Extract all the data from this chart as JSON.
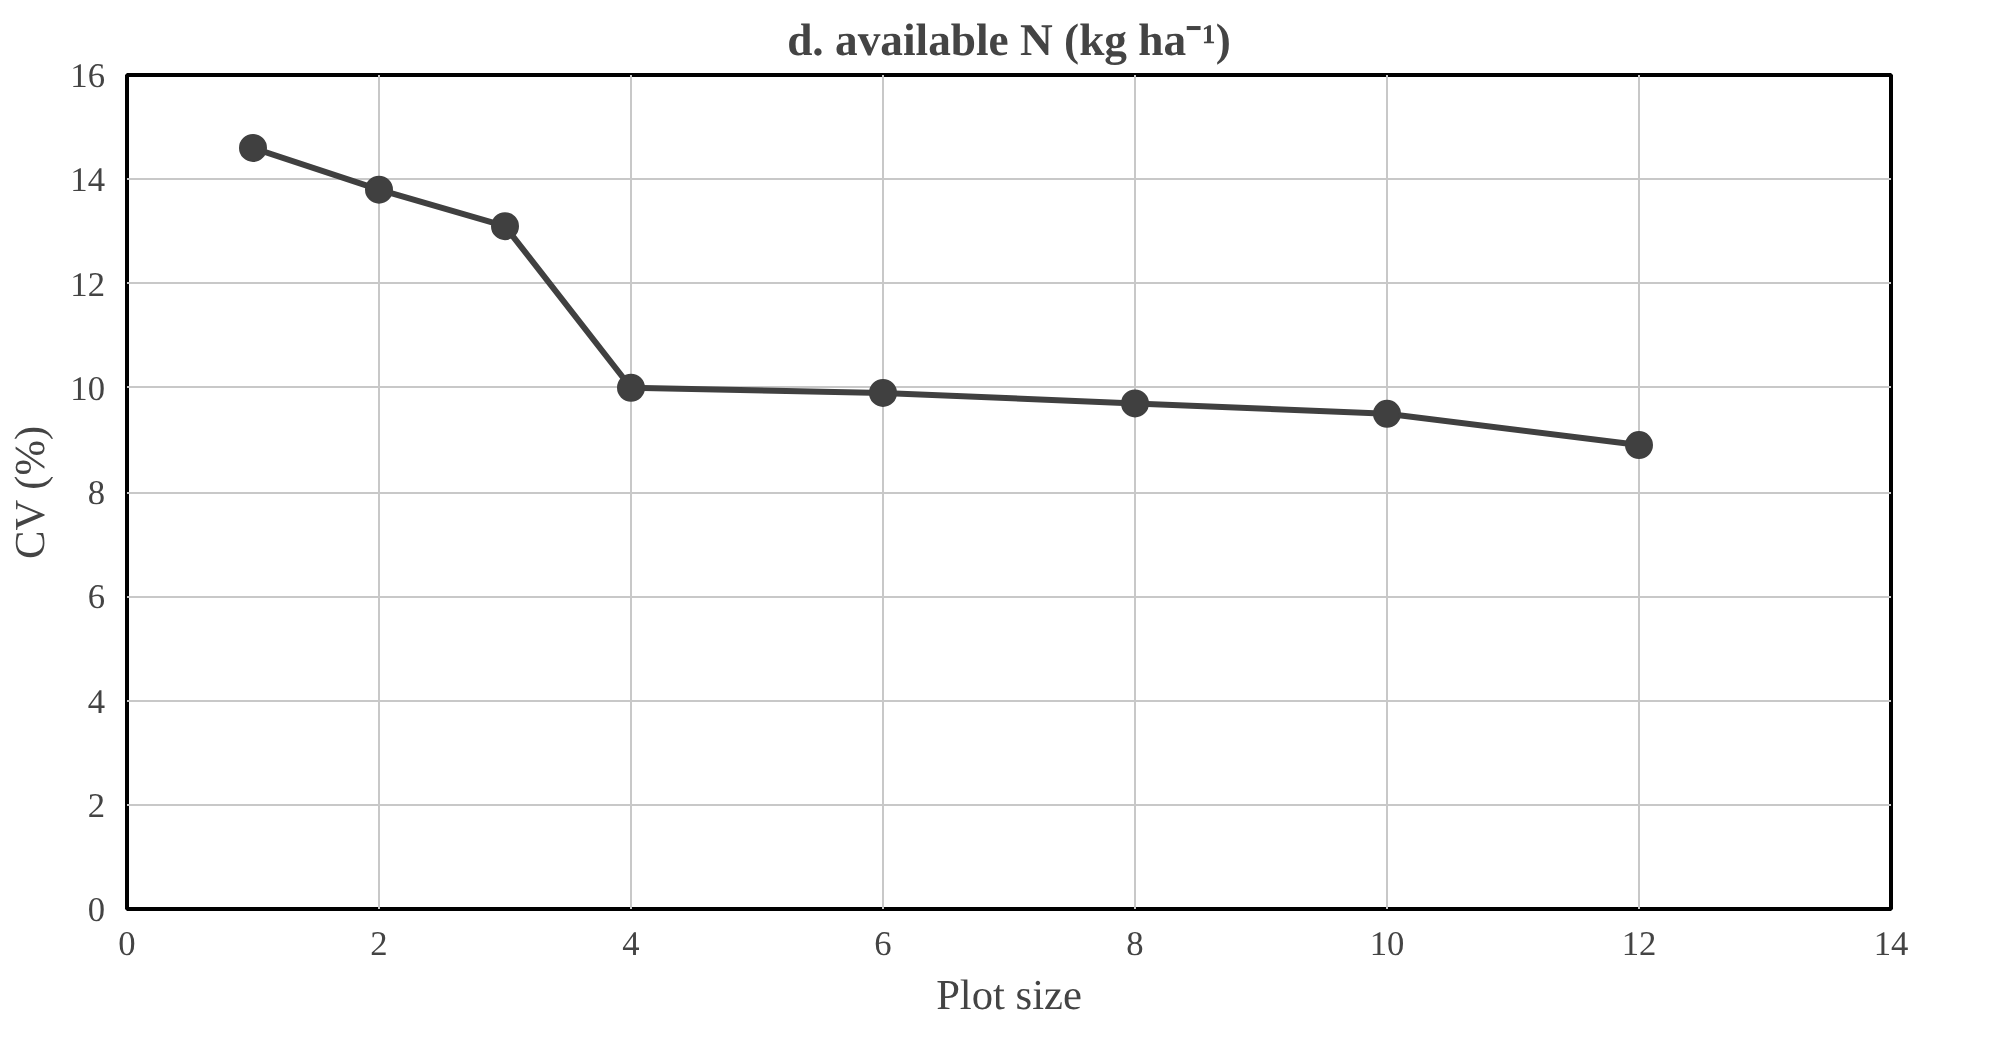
{
  "chart_data": {
    "type": "line",
    "title": "d. available N (kg ha⁻¹)",
    "xlabel": "Plot size",
    "ylabel": "CV (%)",
    "x": [
      1,
      2,
      3,
      4,
      6,
      8,
      10,
      12
    ],
    "series": [
      {
        "color": "#404040",
        "values": [
          14.6,
          13.8,
          13.1,
          10.0,
          9.9,
          9.7,
          9.5,
          8.9
        ]
      }
    ],
    "xlim": [
      0,
      14
    ],
    "xticks": [
      0,
      2,
      4,
      6,
      8,
      10,
      12,
      14
    ],
    "ylim": [
      0,
      16
    ],
    "yticks": [
      0,
      2,
      4,
      6,
      8,
      10,
      12,
      14,
      16
    ],
    "grid": true,
    "marker": "circle",
    "line_style": "solid"
  }
}
